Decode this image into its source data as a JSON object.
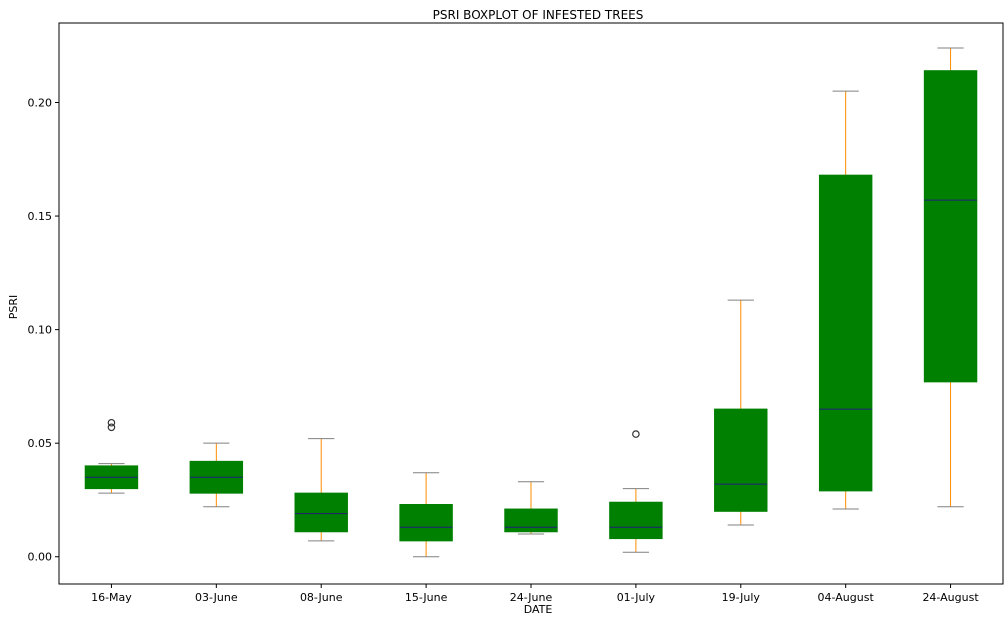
{
  "chart_data": {
    "type": "boxplot",
    "title": "PSRI BOXPLOT OF INFESTED TREES",
    "xlabel": "DATE",
    "ylabel": "PSRI",
    "ylim": [
      -0.012,
      0.235
    ],
    "yticks": [
      0.0,
      0.05,
      0.1,
      0.15,
      0.2
    ],
    "ytick_labels": [
      "0.00",
      "0.05",
      "0.10",
      "0.15",
      "0.20"
    ],
    "grid": false,
    "colors": {
      "box_fill": "#008000",
      "whisker": "#ff8c00",
      "median": "#1f1f7a",
      "cap": "#808080",
      "outlier": "#333333"
    },
    "boxes": [
      {
        "label": "16-May",
        "whislo": 0.028,
        "q1": 0.03,
        "med": 0.035,
        "q3": 0.04,
        "whishi": 0.041,
        "fliers": [
          0.057,
          0.059
        ]
      },
      {
        "label": "03-June",
        "whislo": 0.022,
        "q1": 0.028,
        "med": 0.035,
        "q3": 0.042,
        "whishi": 0.05,
        "fliers": []
      },
      {
        "label": "08-June",
        "whislo": 0.007,
        "q1": 0.011,
        "med": 0.019,
        "q3": 0.028,
        "whishi": 0.052,
        "fliers": []
      },
      {
        "label": "15-June",
        "whislo": 0.0,
        "q1": 0.007,
        "med": 0.013,
        "q3": 0.023,
        "whishi": 0.037,
        "fliers": []
      },
      {
        "label": "24-June",
        "whislo": 0.01,
        "q1": 0.011,
        "med": 0.013,
        "q3": 0.021,
        "whishi": 0.033,
        "fliers": []
      },
      {
        "label": "01-July",
        "whislo": 0.002,
        "q1": 0.008,
        "med": 0.013,
        "q3": 0.024,
        "whishi": 0.03,
        "fliers": [
          0.054
        ]
      },
      {
        "label": "19-July",
        "whislo": 0.014,
        "q1": 0.02,
        "med": 0.032,
        "q3": 0.065,
        "whishi": 0.113,
        "fliers": []
      },
      {
        "label": "04-August",
        "whislo": 0.021,
        "q1": 0.029,
        "med": 0.065,
        "q3": 0.168,
        "whishi": 0.205,
        "fliers": []
      },
      {
        "label": "24-August",
        "whislo": 0.022,
        "q1": 0.077,
        "med": 0.157,
        "q3": 0.214,
        "whishi": 0.224,
        "fliers": []
      }
    ]
  }
}
